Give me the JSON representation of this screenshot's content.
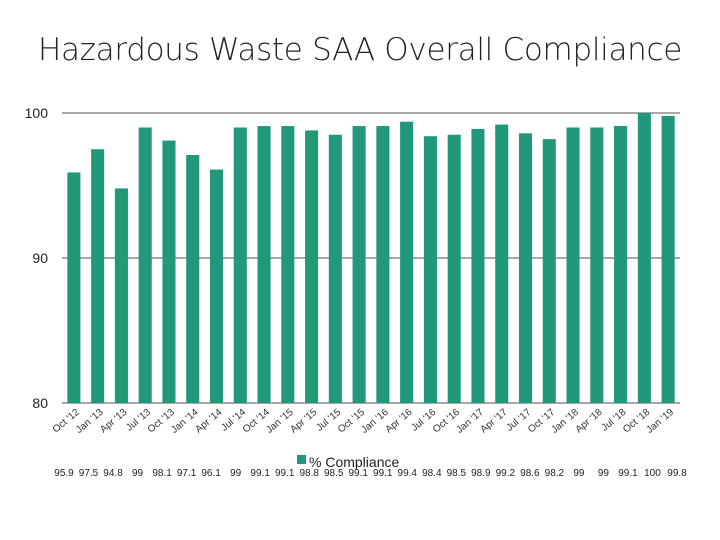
{
  "chart_data": {
    "type": "bar",
    "title": "Hazardous Waste SAA Overall Compliance",
    "xlabel": "",
    "ylabel": "",
    "ylim": [
      80,
      100
    ],
    "yticks": [
      80,
      90,
      100
    ],
    "categories": [
      "Oct '12",
      "Jan '13",
      "Apr '13",
      "Jul '13",
      "Oct '13",
      "Jan '14",
      "Apr '14",
      "Jul '14",
      "Oct '14",
      "Jan '15",
      "Apr '15",
      "Jul '15",
      "Oct '15",
      "Jan '16",
      "Apr '16",
      "Jul '16",
      "Oct '16",
      "Jan '17",
      "Apr '17",
      "Jul '17",
      "Oct '17",
      "Jan '18",
      "Apr '18",
      "Jul '18",
      "Oct '18",
      "Jan '19"
    ],
    "series": [
      {
        "name": "% Compliance",
        "values": [
          95.9,
          97.5,
          94.8,
          99,
          98.1,
          97.1,
          96.1,
          99,
          99.1,
          99.1,
          98.8,
          98.5,
          99.1,
          99.1,
          99.4,
          98.4,
          98.5,
          98.9,
          99.2,
          98.6,
          98.2,
          99,
          99,
          99.1,
          100,
          99.8
        ],
        "labels": [
          "95.9",
          "97.5",
          "94.8",
          "99",
          "98.1",
          "97.1",
          "96.1",
          "99",
          "99.1",
          "99.1",
          "98.8",
          "98.5",
          "99.1",
          "99.1",
          "99.4",
          "98.4",
          "98.5",
          "98.9",
          "99.2",
          "98.6",
          "98.2",
          "99",
          "99",
          "99.1",
          "100",
          "99.8"
        ],
        "color": "#21987a"
      }
    ],
    "grid": true,
    "legend": "bottom"
  }
}
